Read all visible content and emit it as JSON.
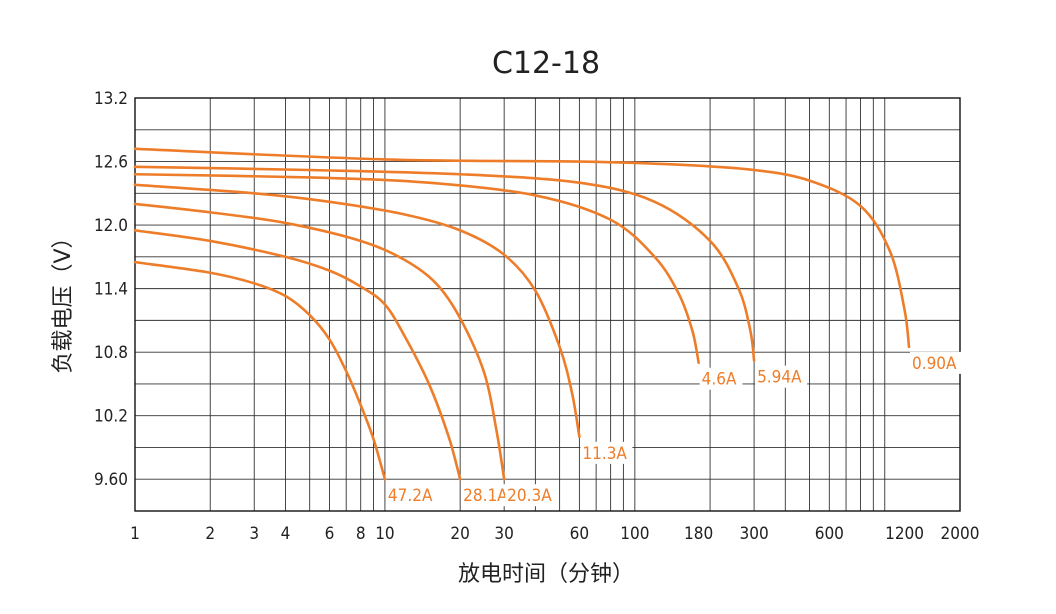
{
  "chart_data": {
    "type": "line",
    "title": "C12-18",
    "xlabel": "放电时间（分钟）",
    "ylabel": "负载电压（V）",
    "x_scale": "log",
    "xlim": [
      1,
      2000
    ],
    "ylim": [
      9.3,
      13.2
    ],
    "x_tick_labels": [
      "1",
      "2",
      "3",
      "4",
      "6",
      "8",
      "10",
      "20",
      "30",
      "60",
      "100",
      "180",
      "300",
      "600",
      "1200",
      "2000"
    ],
    "x_tick_values": [
      1,
      2,
      3,
      4,
      6,
      8,
      10,
      20,
      30,
      60,
      100,
      180,
      300,
      600,
      1200,
      2000
    ],
    "y_tick_labels": [
      "13.2",
      "12.6",
      "12.0",
      "11.4",
      "10.8",
      "10.2",
      "9.60"
    ],
    "y_tick_values": [
      13.2,
      12.6,
      12.0,
      11.4,
      10.8,
      10.2,
      9.6
    ],
    "grid": true,
    "line_color": "#ee7d2a",
    "series": [
      {
        "name": "47.2A",
        "x": [
          1,
          2,
          3,
          4,
          5,
          6,
          7,
          8,
          9,
          10
        ],
        "y": [
          11.65,
          11.55,
          11.45,
          11.33,
          11.15,
          10.92,
          10.62,
          10.3,
          9.98,
          9.6
        ]
      },
      {
        "name": "28.1A",
        "x": [
          1,
          2,
          4,
          6,
          8,
          10,
          12,
          15,
          18,
          20
        ],
        "y": [
          11.95,
          11.85,
          11.7,
          11.57,
          11.42,
          11.25,
          10.95,
          10.5,
          10.0,
          9.6
        ]
      },
      {
        "name": "20.3A",
        "x": [
          1,
          2,
          4,
          8,
          12,
          16,
          20,
          25,
          28,
          30
        ],
        "y": [
          12.2,
          12.12,
          12.02,
          11.85,
          11.67,
          11.45,
          11.12,
          10.6,
          10.05,
          9.6
        ]
      },
      {
        "name": "11.3A",
        "x": [
          1,
          3,
          6,
          12,
          20,
          30,
          40,
          50,
          56,
          60
        ],
        "y": [
          12.38,
          12.3,
          12.22,
          12.1,
          11.95,
          11.72,
          11.38,
          10.85,
          10.42,
          10.0
        ]
      },
      {
        "name": "4.6A",
        "x": [
          1,
          5,
          15,
          40,
          80,
          120,
          150,
          170,
          180
        ],
        "y": [
          12.48,
          12.45,
          12.4,
          12.28,
          12.05,
          11.7,
          11.35,
          11.0,
          10.7
        ]
      },
      {
        "name": "5.94A",
        "x": [
          1,
          5,
          20,
          60,
          120,
          200,
          260,
          290,
          300
        ],
        "y": [
          12.55,
          12.52,
          12.48,
          12.4,
          12.22,
          11.85,
          11.4,
          11.0,
          10.72
        ]
      },
      {
        "name": "0.90A",
        "x": [
          1,
          10,
          60,
          150,
          300,
          500,
          800,
          1050,
          1200,
          1250
        ],
        "y": [
          12.72,
          12.62,
          12.6,
          12.57,
          12.52,
          12.42,
          12.18,
          11.75,
          11.2,
          10.85
        ]
      }
    ]
  }
}
